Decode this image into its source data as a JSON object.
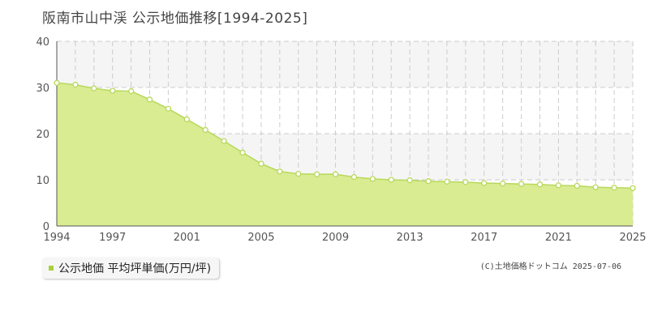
{
  "title": "阪南市山中渓 公示地価推移[1994-2025]",
  "colors": {
    "area_fill": "#d9ec92",
    "line": "#b8d85a",
    "marker_fill": "#ffffff",
    "band": "#f5f5f5",
    "grid": "#cccccc"
  },
  "legend": {
    "label": "公示地価 平均坪単価(万円/坪)"
  },
  "credit": "(C)土地価格ドットコム 2025-07-06",
  "chart_data": {
    "type": "area",
    "title": "阪南市山中渓 公示地価推移[1994-2025]",
    "xlabel": "",
    "ylabel": "",
    "xlim": [
      1994,
      2025
    ],
    "ylim": [
      0,
      40
    ],
    "y_ticks": [
      0,
      10,
      20,
      30,
      40
    ],
    "x_tick_labels": [
      "1994",
      "1997",
      "2001",
      "2005",
      "2009",
      "2013",
      "2017",
      "2021",
      "2025"
    ],
    "grid": true,
    "legend_placement": "bottom-left",
    "series": [
      {
        "name": "公示地価 平均坪単価(万円/坪)",
        "x": [
          1994,
          1995,
          1996,
          1997,
          1998,
          1999,
          2000,
          2001,
          2002,
          2003,
          2004,
          2005,
          2006,
          2007,
          2008,
          2009,
          2010,
          2011,
          2012,
          2013,
          2014,
          2015,
          2016,
          2017,
          2018,
          2019,
          2020,
          2021,
          2022,
          2023,
          2024,
          2025
        ],
        "values": [
          31.0,
          30.6,
          29.8,
          29.3,
          29.2,
          27.4,
          25.4,
          23.1,
          20.8,
          18.4,
          15.9,
          13.5,
          11.8,
          11.3,
          11.2,
          11.2,
          10.6,
          10.2,
          10.0,
          9.9,
          9.7,
          9.6,
          9.5,
          9.3,
          9.2,
          9.1,
          9.0,
          8.8,
          8.7,
          8.4,
          8.3,
          8.2
        ]
      }
    ]
  }
}
